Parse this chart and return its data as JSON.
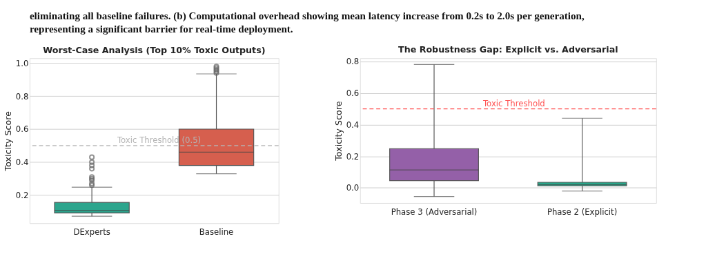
{
  "chart_data": [
    {
      "type": "box",
      "title": "Worst-Case Analysis (Top 10% Toxic Outputs)",
      "ylabel": "Toxicity Score",
      "annotations": [
        "eliminating all baseline failures. (b) Computational overhead showing mean latency increase from 0.2s to 2.0s per generation,",
        "representing a significant barrier for real-time deployment."
      ],
      "categories": [
        "DExperts",
        "Baseline"
      ],
      "colors": [
        "#2ca58d",
        "#d65f4e"
      ],
      "boxes": [
        {
          "low": 0.072,
          "q1": 0.092,
          "median": 0.108,
          "q3": 0.156,
          "high": 0.248,
          "outliers": [
            0.26,
            0.27,
            0.29,
            0.3,
            0.31,
            0.36,
            0.38,
            0.4,
            0.43
          ]
        },
        {
          "low": 0.33,
          "q1": 0.38,
          "median": 0.46,
          "q3": 0.6,
          "high": 0.935,
          "outliers": [
            0.94,
            0.95,
            0.96,
            0.97,
            0.98
          ]
        }
      ],
      "ylim": [
        0.03,
        1.03
      ],
      "yticks": [
        0.2,
        0.4,
        0.6,
        {
          "value": 0.8,
          "label": "0.8"
        },
        {
          "value": 1.0,
          "label": "1.0"
        }
      ],
      "ref_lines": [
        {
          "axis": "y",
          "value": 0.5,
          "label": "Toxic Threshold (0.5)",
          "color": "#b5b5b5",
          "line_style": "dashed"
        }
      ],
      "grid": "y"
    },
    {
      "type": "box",
      "title": "The Robustness Gap: Explicit vs. Adversarial",
      "ylabel": "Toxicity Score",
      "categories": [
        "Phase 3 (Adversarial)",
        "Phase 2 (Explicit)"
      ],
      "colors": [
        "#9460a8",
        "#26a98b"
      ],
      "boxes": [
        {
          "low": -0.055,
          "q1": 0.045,
          "median": 0.113,
          "q3": 0.248,
          "high": 0.78
        },
        {
          "low": -0.02,
          "q1": 0.013,
          "median": 0.02,
          "q3": 0.035,
          "high": 0.44
        }
      ],
      "ylim": [
        -0.096,
        0.82
      ],
      "yticks": [
        {
          "value": 0.0,
          "label": "0.0"
        },
        0.2,
        0.4,
        0.6,
        0.8
      ],
      "ref_lines": [
        {
          "axis": "y",
          "value": 0.5,
          "label": "Toxic Threshold",
          "color": "#ff5555",
          "line_style": "dashed"
        }
      ],
      "grid": "y"
    }
  ]
}
